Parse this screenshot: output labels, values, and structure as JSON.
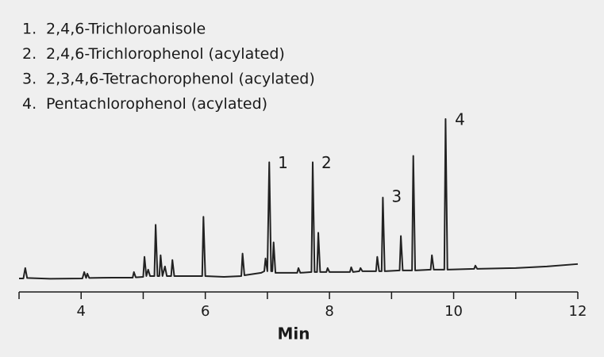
{
  "chart_data": {
    "type": "line",
    "legend_items": [
      {
        "number": "1.",
        "name": "2,4,6-Trichloroanisole"
      },
      {
        "number": "2.",
        "name": "2,4,6-Trichlorophenol (acylated)"
      },
      {
        "number": "3.",
        "name": "2,3,4,6-Tetrachorophenol (acylated)"
      },
      {
        "number": "4.",
        "name": "Pentachlorophenol (acylated)"
      }
    ],
    "x_label": "Min",
    "xlim": [
      3,
      12
    ],
    "xticks": [
      4,
      6,
      8,
      10,
      12
    ],
    "minor_xticks": [
      3,
      5,
      7,
      9,
      11
    ],
    "ylim": [
      0,
      100
    ],
    "color": "#222222",
    "x": [
      3.0,
      3.07,
      3.1,
      3.13,
      3.5,
      4.02,
      4.05,
      4.08,
      4.1,
      4.13,
      4.5,
      4.83,
      4.85,
      4.88,
      5.0,
      5.02,
      5.05,
      5.08,
      5.11,
      5.18,
      5.2,
      5.23,
      5.26,
      5.28,
      5.31,
      5.35,
      5.38,
      5.45,
      5.47,
      5.5,
      5.95,
      5.97,
      6.0,
      6.3,
      6.58,
      6.6,
      6.63,
      6.9,
      6.95,
      6.97,
      7.0,
      7.03,
      7.06,
      7.08,
      7.1,
      7.13,
      7.48,
      7.5,
      7.53,
      7.71,
      7.73,
      7.76,
      7.8,
      7.82,
      7.85,
      7.95,
      7.97,
      8.0,
      8.33,
      8.35,
      8.38,
      8.48,
      8.5,
      8.53,
      8.75,
      8.77,
      8.8,
      8.84,
      8.86,
      8.89,
      9.13,
      9.15,
      9.18,
      9.33,
      9.35,
      9.38,
      9.63,
      9.65,
      9.68,
      9.85,
      9.87,
      9.9,
      10.33,
      10.35,
      10.38,
      11,
      11.5,
      12
    ],
    "values": [
      0.5,
      0.5,
      7,
      0.8,
      0.3,
      0.5,
      4.5,
      0.8,
      3.5,
      0.8,
      1,
      1,
      4.5,
      1.2,
      1.5,
      14,
      2,
      6,
      2,
      2,
      34,
      2,
      2,
      15,
      2,
      8,
      2,
      2,
      12,
      2,
      2,
      39,
      2,
      1.5,
      2,
      16,
      2.5,
      4,
      5,
      13,
      5,
      73,
      5,
      5,
      23,
      4,
      4,
      7,
      4,
      4.5,
      73,
      4.5,
      4.5,
      29,
      4.5,
      4.5,
      7,
      4.5,
      4.5,
      7.5,
      4.5,
      5,
      7,
      5,
      5,
      14,
      5,
      5,
      51,
      5,
      5.5,
      27,
      5.5,
      5.5,
      77,
      5.5,
      6,
      15,
      6,
      6,
      100,
      6,
      6.5,
      8.5,
      6.5,
      7,
      8,
      9.5
    ],
    "annotations": [
      {
        "text": "1",
        "x": 7.17,
        "y": 73
      },
      {
        "text": "2",
        "x": 7.87,
        "y": 73
      },
      {
        "text": "3",
        "x": 9.0,
        "y": 52
      },
      {
        "text": "4",
        "x": 10.02,
        "y": 100
      }
    ]
  }
}
